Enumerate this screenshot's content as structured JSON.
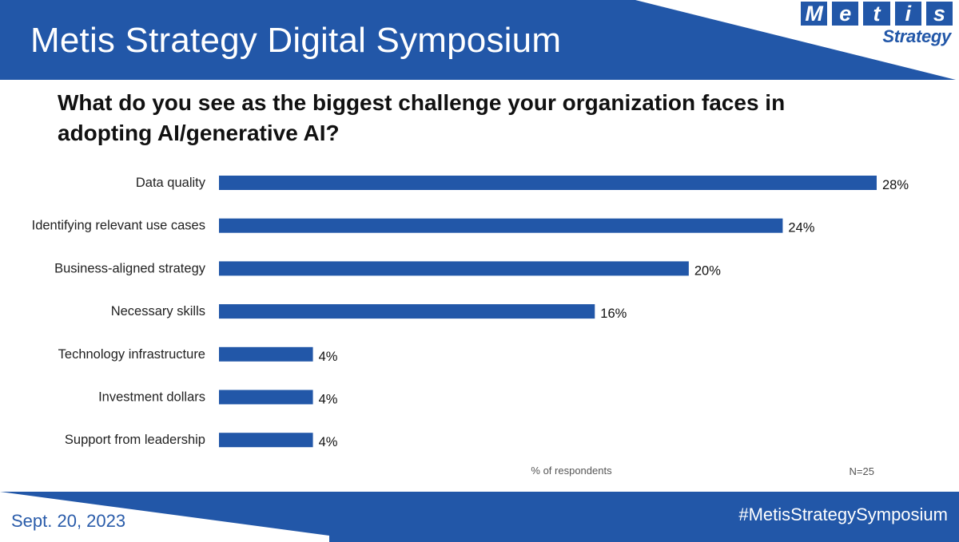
{
  "header": {
    "title": "Metis Strategy Digital Symposium"
  },
  "logo": {
    "letters": [
      "M",
      "e",
      "t",
      "i",
      "s"
    ],
    "subtitle": "Strategy"
  },
  "colors": {
    "brand_blue": "#2257a8",
    "bar": "#2257a8"
  },
  "chart_data": {
    "type": "bar",
    "orientation": "horizontal",
    "title": "What do you see as the biggest challenge your organization faces in adopting AI/generative AI?",
    "categories": [
      "Data quality",
      "Identifying relevant use cases",
      "Business-aligned strategy",
      "Necessary skills",
      "Technology infrastructure",
      "Investment dollars",
      "Support from leadership"
    ],
    "values": [
      28,
      24,
      20,
      16,
      4,
      4,
      4
    ],
    "value_labels": [
      "28%",
      "24%",
      "20%",
      "16%",
      "4%",
      "4%",
      "4%"
    ],
    "xlabel": "% of respondents",
    "xlim": [
      0,
      28
    ],
    "grid": false,
    "note": "N=25"
  },
  "footer": {
    "date": "Sept. 20, 2023",
    "hashtag": "#MetisStrategySymposium"
  }
}
